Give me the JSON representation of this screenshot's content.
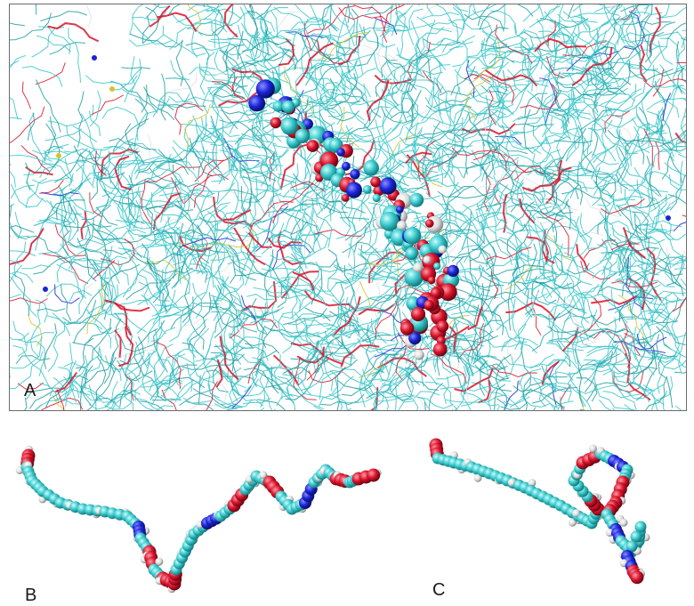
{
  "figure": {
    "panels": [
      {
        "id": "A",
        "label": "A",
        "content": "membrane-simulation-box"
      },
      {
        "id": "B",
        "label": "B",
        "content": "lipid-molecule-extended"
      },
      {
        "id": "C",
        "label": "C",
        "content": "lipid-molecule-bent"
      }
    ]
  },
  "colors": {
    "carbon": "#39c6c9",
    "carbon_dark": "#1f9ea1",
    "nitrogen": "#1a24d6",
    "oxygen": "#d8132a",
    "hydrogen": "#e2e2e2",
    "phosphorus": "#d4c430",
    "frame": "#6b6b6b"
  }
}
